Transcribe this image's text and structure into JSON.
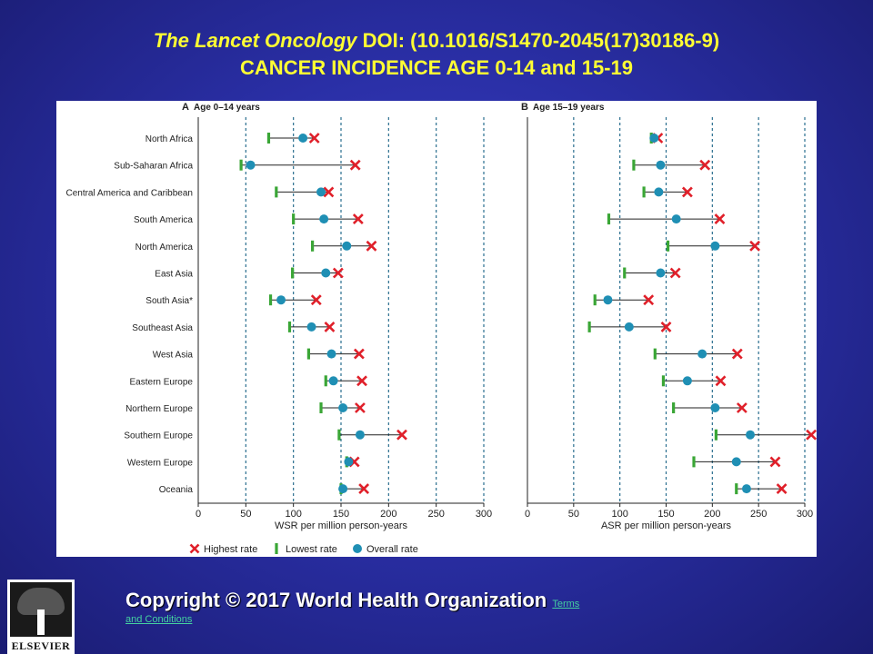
{
  "title": {
    "journal": "The Lancet Oncology",
    "doi": " DOI: (10.1016/S1470-2045(17)30186-9)",
    "subtitle": "CANCER INCIDENCE  AGE 0-14  and 15-19"
  },
  "copyright": {
    "text": "Copyright © 2017 World Health Organization",
    "link_part1": "Terms",
    "link_part2": "and Conditions"
  },
  "logo": {
    "text": "ELSEVIER"
  },
  "colors": {
    "highest": "#e0202a",
    "lowest": "#3aa636",
    "overall": "#1f8fb4",
    "title": "#ffff33"
  },
  "chart_data": [
    {
      "type": "scatter",
      "panel": "A",
      "title": "Age 0–14 years",
      "xlabel": "WSR per million person-years",
      "xlim": [
        0,
        300
      ],
      "xticks": [
        0,
        50,
        100,
        150,
        200,
        250,
        300
      ],
      "categories": [
        "North Africa",
        "Sub-Saharan Africa",
        "Central America and Caribbean",
        "South America",
        "North America",
        "East Asia",
        "South Asia*",
        "Southeast Asia",
        "West Asia",
        "Eastern Europe",
        "Northern Europe",
        "Southern Europe",
        "Western Europe",
        "Oceania"
      ],
      "series": [
        {
          "name": "Highest rate",
          "values": [
            122,
            165,
            137,
            168,
            182,
            147,
            124,
            138,
            169,
            172,
            170,
            214,
            164,
            174
          ]
        },
        {
          "name": "Lowest rate",
          "values": [
            74,
            45,
            82,
            100,
            120,
            99,
            76,
            96,
            116,
            134,
            129,
            148,
            156,
            150
          ]
        },
        {
          "name": "Overall rate",
          "values": [
            110,
            55,
            129,
            132,
            156,
            134,
            87,
            119,
            140,
            142,
            152,
            170,
            158,
            152
          ]
        }
      ],
      "legend": "bottom"
    },
    {
      "type": "scatter",
      "panel": "B",
      "title": "Age 15–19 years",
      "xlabel": "ASR per million person-years",
      "xlim": [
        0,
        300
      ],
      "xticks": [
        0,
        50,
        100,
        150,
        200,
        250,
        300
      ],
      "categories": [
        "North Africa",
        "Sub-Saharan Africa",
        "Central America and Caribbean",
        "South America",
        "North America",
        "East Asia",
        "South Asia*",
        "Southeast Asia",
        "West Asia",
        "Eastern Europe",
        "Northern Europe",
        "Southern Europe",
        "Western Europe",
        "Oceania"
      ],
      "series": [
        {
          "name": "Highest rate",
          "values": [
            141,
            192,
            173,
            208,
            246,
            160,
            131,
            150,
            227,
            209,
            232,
            307,
            268,
            275
          ]
        },
        {
          "name": "Lowest rate",
          "values": [
            134,
            115,
            126,
            88,
            152,
            105,
            73,
            67,
            138,
            147,
            158,
            204,
            180,
            226
          ]
        },
        {
          "name": "Overall rate",
          "values": [
            137,
            144,
            142,
            161,
            203,
            144,
            87,
            110,
            189,
            173,
            203,
            241,
            226,
            237
          ]
        }
      ]
    }
  ]
}
